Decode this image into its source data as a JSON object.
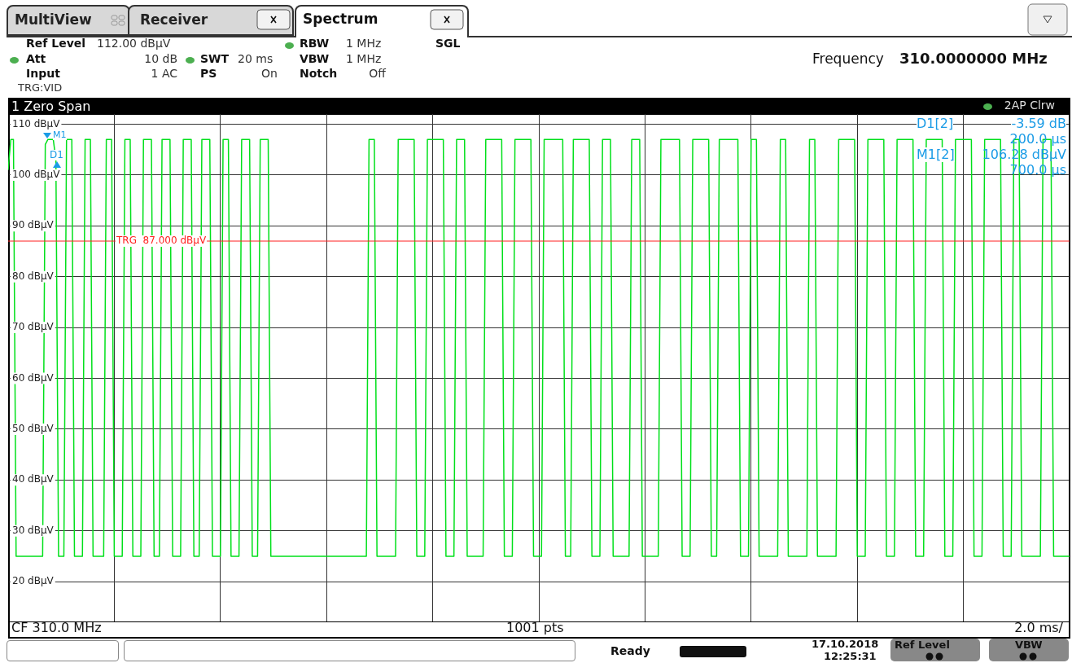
{
  "chart_data": {
    "type": "line",
    "title": "1 Zero Span",
    "categories": [
      null,
      null,
      null,
      null,
      null,
      null,
      null,
      null,
      null,
      null,
      null,
      null,
      null,
      null,
      null,
      null,
      null,
      null,
      null,
      null,
      null,
      null,
      null,
      null,
      null,
      null,
      null,
      null,
      null,
      null,
      null,
      null,
      null,
      null,
      null,
      null,
      null,
      null,
      null,
      null,
      null,
      null,
      null,
      null,
      null,
      null,
      null,
      null,
      null,
      null,
      null,
      null,
      null,
      null,
      null,
      null,
      null,
      null,
      null,
      null,
      null,
      null,
      null,
      null,
      null,
      null,
      null,
      null,
      null,
      null,
      null,
      null,
      null,
      null,
      null,
      null,
      null,
      null,
      null,
      null,
      null,
      null,
      null,
      null,
      null,
      null,
      null,
      null,
      null,
      null,
      null,
      null,
      null,
      null,
      null,
      null,
      null,
      null,
      null,
      null,
      null,
      null,
      null,
      null,
      null,
      null,
      null,
      null,
      null,
      null,
      null,
      null,
      null,
      null,
      null,
      null,
      null,
      null,
      null,
      null,
      null,
      null,
      null,
      null,
      null,
      null,
      null,
      null,
      null,
      null,
      null,
      null,
      null,
      null,
      null,
      null,
      null,
      null,
      null,
      null,
      null,
      null,
      null,
      null,
      null,
      null,
      null,
      null,
      null,
      null,
      null,
      null,
      null,
      null,
      null,
      null,
      null,
      null,
      null,
      null,
      null,
      null,
      null,
      null,
      null,
      null,
      null,
      null,
      null,
      null,
      null,
      null,
      null,
      null,
      null,
      null,
      null,
      null,
      null,
      null,
      null,
      null,
      null,
      null,
      null,
      null,
      null,
      null,
      null,
      null,
      null,
      null,
      null,
      null,
      null,
      null,
      null,
      null,
      null,
      null,
      null,
      null,
      null,
      null,
      null,
      null,
      null,
      null,
      null,
      null,
      null,
      null,
      null,
      null,
      null,
      null,
      null,
      null,
      null,
      null,
      null,
      null,
      null,
      null,
      null,
      null,
      null,
      null,
      null,
      null,
      null,
      null,
      null,
      null,
      null,
      null,
      null,
      null,
      null,
      null,
      null,
      null,
      null,
      null,
      null,
      null,
      null,
      null,
      null,
      null,
      null,
      null,
      null,
      null,
      null,
      null,
      null,
      null,
      null,
      null,
      null,
      null,
      null,
      null,
      null,
      null,
      null,
      null,
      null,
      null,
      null,
      null,
      null,
      null,
      null,
      null,
      null,
      null,
      null,
      null,
      null,
      null,
      null,
      null,
      null,
      null,
      null,
      null,
      null,
      null,
      null,
      null,
      null,
      null,
      null,
      null,
      null,
      null,
      null,
      null,
      null,
      null,
      null,
      null,
      null,
      null,
      null,
      null,
      null,
      null,
      null,
      null,
      null,
      null,
      null,
      null,
      null,
      null,
      null,
      null,
      null,
      null,
      null,
      null,
      null,
      null,
      null,
      null,
      null,
      null,
      null,
      null,
      null,
      null,
      null,
      null,
      null,
      null,
      null,
      null,
      null,
      null,
      null,
      null,
      null,
      null,
      null,
      null,
      null,
      null,
      null,
      null,
      null,
      null,
      null,
      null,
      null,
      null,
      null,
      null,
      null,
      null,
      null,
      null,
      null,
      null,
      null,
      null,
      null,
      null,
      null,
      null,
      null,
      null,
      null,
      null,
      null,
      null,
      null,
      null,
      null,
      null,
      null,
      null,
      null,
      null,
      null,
      null,
      null,
      null,
      null,
      null,
      null,
      null,
      null,
      null,
      null,
      null,
      null,
      null,
      null
    ],
    "ylim": [
      12,
      112
    ],
    "yticks": [
      {
        "value": 110,
        "label": "110 dBµV"
      },
      {
        "value": 100,
        "label": "100 dBµV"
      },
      {
        "value": 90,
        "label": "90 dBµV"
      },
      {
        "value": 80,
        "label": "80 dBµV"
      },
      {
        "value": 70,
        "label": "70 dBµV"
      },
      {
        "value": 60,
        "label": "60 dBµV"
      },
      {
        "value": 50,
        "label": "50 dBµV"
      },
      {
        "value": 40,
        "label": "40 dBµV"
      },
      {
        "value": 30,
        "label": "30 dBµV"
      },
      {
        "value": 20,
        "label": "20 dBµV"
      }
    ],
    "tick_labels": "y",
    "grid": true,
    "legend": false,
    "marker": "none",
    "line_style": "solid",
    "series": [
      {
        "color": "#00e01a",
        "values": [
          101,
          107,
          107,
          25,
          25,
          25,
          25,
          25,
          25,
          25,
          25,
          25,
          25,
          25,
          106,
          107,
          107,
          107,
          103,
          25,
          25,
          25,
          107,
          107,
          107,
          25,
          25,
          25,
          25,
          107,
          107,
          107,
          25,
          25,
          25,
          25,
          25,
          107,
          107,
          107,
          25,
          25,
          25,
          25,
          107,
          107,
          107,
          25,
          25,
          25,
          25,
          107,
          107,
          107,
          107,
          25,
          25,
          25,
          107,
          107,
          107,
          107,
          25,
          25,
          25,
          25,
          107,
          107,
          107,
          107,
          25,
          25,
          25,
          107,
          107,
          107,
          107,
          25,
          25,
          25,
          25,
          107,
          107,
          107,
          25,
          25,
          25,
          25,
          107,
          107,
          107,
          107,
          25,
          25,
          25,
          107,
          107,
          107,
          107,
          25,
          25,
          25,
          25,
          25,
          25,
          25,
          25,
          25,
          25,
          25,
          25,
          25,
          25,
          25,
          25,
          25,
          25,
          25,
          25,
          25,
          25,
          25,
          25,
          25,
          25,
          25,
          25,
          25,
          25,
          25,
          25,
          25,
          25,
          25,
          25,
          25,
          107,
          107,
          107,
          25,
          25,
          25,
          25,
          25,
          25,
          25,
          25,
          107,
          107,
          107,
          107,
          107,
          107,
          107,
          25,
          25,
          25,
          25,
          107,
          107,
          107,
          107,
          107,
          107,
          107,
          25,
          25,
          25,
          25,
          107,
          107,
          107,
          107,
          25,
          25,
          25,
          25,
          25,
          25,
          25,
          107,
          107,
          107,
          107,
          107,
          107,
          107,
          25,
          25,
          25,
          25,
          107,
          107,
          107,
          107,
          107,
          107,
          107,
          25,
          25,
          25,
          25,
          107,
          107,
          107,
          107,
          107,
          107,
          107,
          107,
          25,
          25,
          25,
          107,
          107,
          107,
          107,
          107,
          107,
          107,
          25,
          25,
          25,
          25,
          107,
          107,
          107,
          107,
          25,
          25,
          25,
          25,
          25,
          25,
          25,
          107,
          107,
          107,
          107,
          25,
          25,
          25,
          25,
          25,
          25,
          25,
          107,
          107,
          107,
          107,
          107,
          107,
          107,
          107,
          25,
          25,
          25,
          25,
          107,
          107,
          107,
          107,
          107,
          107,
          107,
          25,
          25,
          25,
          107,
          107,
          107,
          107,
          107,
          107,
          107,
          107,
          25,
          25,
          25,
          25,
          107,
          107,
          107,
          25,
          25,
          25,
          25,
          25,
          25,
          25,
          25,
          107,
          107,
          107,
          25,
          25,
          25,
          25,
          25,
          25,
          25,
          25,
          107,
          107,
          107,
          25,
          25,
          25,
          25,
          25,
          25,
          25,
          25,
          107,
          107,
          107,
          107,
          107,
          107,
          107,
          25,
          25,
          25,
          25,
          107,
          107,
          107,
          107,
          107,
          107,
          107,
          25,
          25,
          25,
          25,
          107,
          107,
          107,
          107,
          107,
          107,
          107,
          25,
          25,
          25,
          25,
          107,
          107,
          107,
          107,
          107,
          107,
          107,
          25,
          25,
          25,
          25,
          107,
          107,
          107,
          107,
          107,
          107,
          107,
          25,
          25,
          25,
          25,
          107,
          107,
          107,
          107,
          107,
          107,
          107,
          25,
          25,
          25,
          25,
          107,
          107,
          107,
          25,
          25,
          25,
          25,
          25,
          25,
          25,
          25,
          107,
          107,
          107,
          107,
          25,
          25,
          25,
          25,
          25,
          25,
          25
        ]
      }
    ],
    "ref_lines": [
      {
        "axis": "y",
        "value": 87,
        "label": "TRG  87.000 dBµV",
        "color": "#ff2020"
      }
    ],
    "annotations": [
      "MultiView",
      "Receiver",
      "Spectrum",
      "Ref Level",
      "112.00 dBµV",
      "Att",
      "10 dB",
      "Input",
      "1 AC",
      "TRG:VID",
      "SWT",
      "20 ms",
      "PS",
      "On",
      "RBW",
      "1 MHz",
      "VBW",
      "1 MHz",
      "Notch",
      "Off",
      "SGL",
      "Frequency",
      "310.0000000 MHz",
      "2AP Clrw",
      "CF 310.0 MHz",
      "1001 pts",
      "2.0 ms/",
      "Ready",
      "17.10.2018",
      "12:25:31",
      "Ref Level",
      "VBW",
      "D1[2]",
      "-3.59 dB",
      "200.0 µs",
      "M1[2]",
      "106.28 dBµV",
      "700.0 µs",
      "M1",
      "D1"
    ]
  }
}
